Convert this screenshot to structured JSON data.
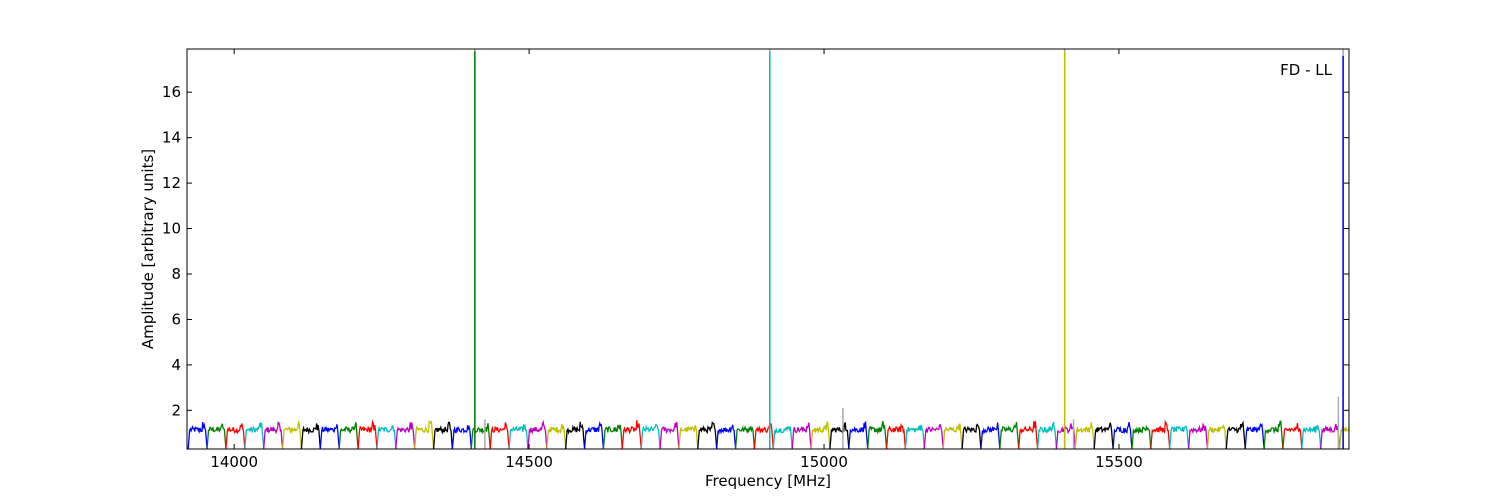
{
  "chart_data": {
    "type": "line",
    "title": "",
    "xlabel": "Frequency [MHz]",
    "ylabel": "Amplitude [arbitrary units]",
    "annotation": "FD - LL",
    "xlim": [
      13920,
      15890
    ],
    "ylim": [
      0.3,
      17.9
    ],
    "xticks": [
      14000,
      14500,
      15000,
      15500
    ],
    "yticks": [
      2,
      4,
      6,
      8,
      10,
      12,
      14,
      16
    ],
    "grid": false,
    "legend": "none",
    "channel_width_mhz": 32,
    "first_channel_start_mhz": 13922,
    "colors": [
      "#0000ff",
      "#008000",
      "#ff0000",
      "#00bfbf",
      "#bf00bf",
      "#bfbf00",
      "#000000"
    ],
    "color_order_start": 0,
    "spikes": [
      {
        "x": 14408,
        "y": 17.8,
        "color": "#008000"
      },
      {
        "x": 14908,
        "y": 17.8,
        "color": "#00bfbf"
      },
      {
        "x": 15408,
        "y": 17.8,
        "color": "#bfbf00"
      },
      {
        "x": 15880,
        "y": 17.6,
        "color": "#0000ff"
      }
    ],
    "gray_spikes": [
      {
        "x": 14408,
        "y": 17.9
      },
      {
        "x": 14425,
        "y": 1.6
      },
      {
        "x": 14908,
        "y": 17.9
      },
      {
        "x": 15032,
        "y": 2.1
      },
      {
        "x": 15408,
        "y": 17.9
      },
      {
        "x": 15423,
        "y": 1.6
      },
      {
        "x": 15872,
        "y": 2.6
      },
      {
        "x": 15880,
        "y": 17.9
      }
    ],
    "ripple_mean": 1.15,
    "ripple_peak": 1.45
  }
}
